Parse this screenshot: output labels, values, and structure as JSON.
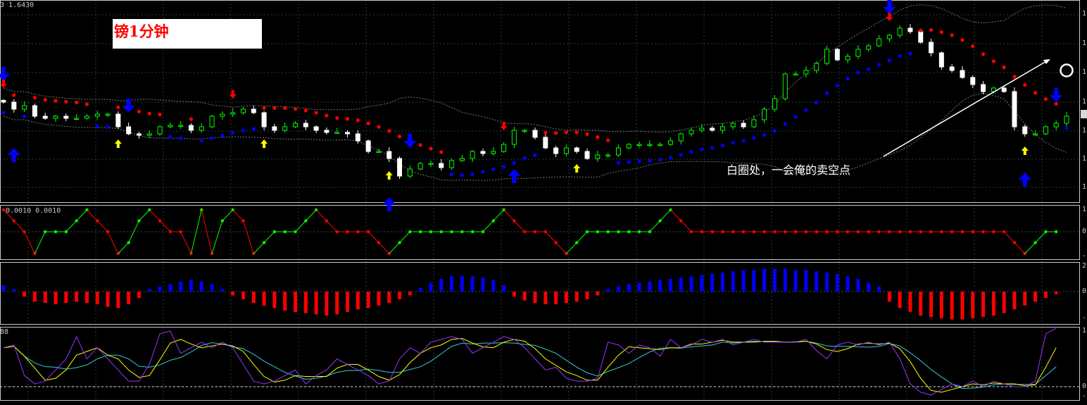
{
  "header": {
    "price_label": "3 1.6430"
  },
  "title_box": {
    "text": "镑1分钟"
  },
  "annotation": {
    "text": "白圈处，一会俺的卖空点"
  },
  "colors": {
    "background": "#000000",
    "up_candle": "#00ff00",
    "down_candle": "#ffffff",
    "stop_down": "#ff0000",
    "stop_up": "#0000ff",
    "signal_yellow": "#ffff00",
    "osc_rising": "#00ff00",
    "osc_falling": "#ff0000",
    "hist_pos": "#0000ff",
    "hist_neg": "#ff0000",
    "line_fast": "#9933ff",
    "line_mid": "#ffff00",
    "line_slow": "#33cccc"
  },
  "axes": {
    "main_ticks": [
      "1",
      "1",
      "1",
      "1",
      "1",
      "1",
      "1"
    ],
    "osc_ticks": [
      "1",
      "0",
      "-1"
    ],
    "hist_ticks": [
      "2",
      "0",
      "-2"
    ],
    "stoch_ticks": [
      "1",
      "0",
      "-2"
    ]
  },
  "chart_data": [
    {
      "type": "candlestick",
      "title": "",
      "closes": [
        1.6411,
        1.6409,
        1.641,
        1.6407,
        1.64064,
        1.6407,
        1.64064,
        1.64064,
        1.6407,
        1.64076,
        1.64076,
        1.6404,
        1.6402,
        1.64016,
        1.6402,
        1.6404,
        1.64044,
        1.64044,
        1.6403,
        1.6404,
        1.6407,
        1.64076,
        1.6408,
        1.6409,
        1.6408,
        1.6404,
        1.6403,
        1.6404,
        1.6405,
        1.6404,
        1.6403,
        1.64024,
        1.64024,
        1.6402,
        1.64,
        1.6397,
        1.6397,
        1.6395,
        1.639,
        1.6392,
        1.63936,
        1.63936,
        1.63924,
        1.63944,
        1.6395,
        1.6397,
        1.63964,
        1.6397,
        1.6399,
        1.6403,
        1.6403,
        1.6401,
        1.6398,
        1.63964,
        1.6398,
        1.6397,
        1.6395,
        1.6396,
        1.6396,
        1.6398,
        1.6399,
        1.6399,
        1.6399,
        1.6399,
        1.64,
        1.6402,
        1.6403,
        1.64036,
        1.6403,
        1.6404,
        1.6405,
        1.6404,
        1.6406,
        1.6409,
        1.6412,
        1.6419,
        1.6419,
        1.642,
        1.6422,
        1.6426,
        1.6423,
        1.6424,
        1.6426,
        1.6427,
        1.6429,
        1.643,
        1.6432,
        1.6431,
        1.6428,
        1.6425,
        1.6421,
        1.642,
        1.6418,
        1.6416,
        1.6414,
        1.6415,
        1.6414,
        1.6404,
        1.6402,
        1.6402,
        1.6404,
        1.6405,
        1.6407
      ],
      "ylim": [
        1.6383,
        1.644
      ],
      "signals": [
        {
          "bar": 1,
          "kind": "big-up"
        },
        {
          "bar": 37,
          "kind": "big-up"
        },
        {
          "bar": 49,
          "kind": "big-up"
        },
        {
          "bar": 98,
          "kind": "big-up"
        },
        {
          "bar": 0,
          "kind": "big-down"
        },
        {
          "bar": 12,
          "kind": "big-down"
        },
        {
          "bar": 39,
          "kind": "big-down"
        },
        {
          "bar": 85,
          "kind": "big-down"
        },
        {
          "bar": 101,
          "kind": "big-down"
        },
        {
          "bar": 0,
          "kind": "small-down"
        },
        {
          "bar": 22,
          "kind": "small-down"
        },
        {
          "bar": 48,
          "kind": "small-down"
        },
        {
          "bar": 85,
          "kind": "small-down"
        },
        {
          "bar": 11,
          "kind": "small-up"
        },
        {
          "bar": 25,
          "kind": "small-up"
        },
        {
          "bar": 37,
          "kind": "small-up"
        },
        {
          "bar": 55,
          "kind": "small-up"
        },
        {
          "bar": 98,
          "kind": "small-up"
        }
      ]
    },
    {
      "type": "line",
      "label": "0.0010 0.0010",
      "ylim": [
        -1,
        1
      ],
      "values": [
        1,
        0.5,
        0,
        -1,
        0,
        0,
        0,
        0.5,
        1,
        0.5,
        0,
        -1,
        -0.5,
        0.5,
        1,
        0.5,
        0,
        0,
        -1,
        1,
        -1,
        0.5,
        1,
        0.5,
        -1,
        -0.5,
        0,
        0,
        0,
        0.5,
        1,
        0.5,
        0,
        0,
        0,
        0,
        -0.5,
        -1,
        -0.5,
        0,
        0,
        0,
        0,
        0,
        0,
        0,
        0,
        0.5,
        1,
        0.5,
        0,
        0,
        0,
        -0.5,
        -1,
        -0.5,
        0,
        0,
        0,
        0,
        0,
        0,
        0,
        0.5,
        1,
        0.5,
        0,
        0,
        0,
        0,
        0,
        0,
        0,
        0,
        0,
        0,
        0,
        0,
        0,
        0,
        0,
        0,
        0,
        0,
        0,
        0,
        0,
        0,
        0,
        0,
        0,
        0,
        0,
        0,
        0,
        0,
        0,
        -0.5,
        -1,
        -0.5,
        0,
        0
      ]
    },
    {
      "type": "bar",
      "ylim": [
        -2.3,
        2.1
      ],
      "values": [
        0.5,
        0.2,
        -0.4,
        -0.8,
        -0.9,
        -1.0,
        -0.9,
        -0.8,
        -0.9,
        -1.0,
        -1.2,
        -1.3,
        -1.0,
        -0.5,
        0.2,
        0.4,
        0.6,
        0.8,
        0.9,
        0.8,
        0.6,
        0.2,
        -0.3,
        -0.6,
        -0.9,
        -1.1,
        -1.3,
        -1.5,
        -1.6,
        -1.7,
        -1.8,
        -1.9,
        -1.8,
        -1.6,
        -1.4,
        -1.3,
        -1.1,
        -0.9,
        -0.6,
        -0.3,
        0.3,
        0.7,
        1.0,
        1.2,
        1.25,
        1.2,
        1.1,
        0.9,
        0.5,
        -0.4,
        -0.7,
        -0.9,
        -1.0,
        -1.0,
        -0.9,
        -0.8,
        -0.6,
        -0.3,
        0.2,
        0.4,
        0.6,
        0.7,
        0.8,
        0.9,
        1.0,
        1.1,
        1.2,
        1.3,
        1.4,
        1.5,
        1.6,
        1.7,
        1.7,
        1.8,
        1.8,
        1.8,
        1.7,
        1.7,
        1.6,
        1.5,
        1.4,
        1.2,
        1.0,
        0.7,
        0.4,
        -0.8,
        -1.3,
        -1.6,
        -1.9,
        -2.0,
        -2.1,
        -2.2,
        -2.2,
        -2.1,
        -2.0,
        -1.9,
        -1.7,
        -1.4,
        -1.1,
        -0.8,
        -0.5,
        -0.2
      ]
    },
    {
      "type": "line",
      "label": "88",
      "ylim": [
        -0.2,
        1.1
      ],
      "values": [
        0.7,
        0.75,
        0.2,
        0.05,
        0.1,
        0.3,
        0.5,
        0.9,
        0.5,
        0.7,
        0.5,
        0.3,
        0.1,
        0.1,
        0.4,
        0.95,
        1.0,
        0.6,
        0.7,
        0.8,
        0.7,
        0.8,
        0.7,
        0.4,
        0.1,
        0.05,
        0.1,
        0.2,
        0.3,
        0.05,
        0.2,
        0.3,
        0.5,
        0.4,
        0.3,
        0.2,
        0.05,
        0.1,
        0.5,
        0.7,
        0.6,
        0.8,
        0.85,
        0.9,
        0.85,
        0.6,
        0.7,
        0.8,
        0.9,
        0.85,
        0.7,
        0.5,
        0.3,
        0.35,
        0.15,
        0.1,
        0.1,
        0.15,
        0.8,
        0.75,
        0.6,
        0.75,
        0.7,
        0.55,
        0.85,
        0.7,
        0.75,
        0.85,
        0.8,
        0.85,
        0.75,
        0.8,
        0.85,
        0.8,
        0.8,
        0.8,
        0.8,
        0.85,
        0.65,
        0.5,
        0.75,
        0.8,
        0.75,
        0.8,
        0.75,
        0.8,
        0.5,
        0.05,
        -0.1,
        -0.15,
        -0.05,
        0.05,
        0,
        0.1,
        0,
        0.1,
        0.05,
        0,
        0,
        0.1,
        0.95,
        1.05
      ]
    }
  ]
}
